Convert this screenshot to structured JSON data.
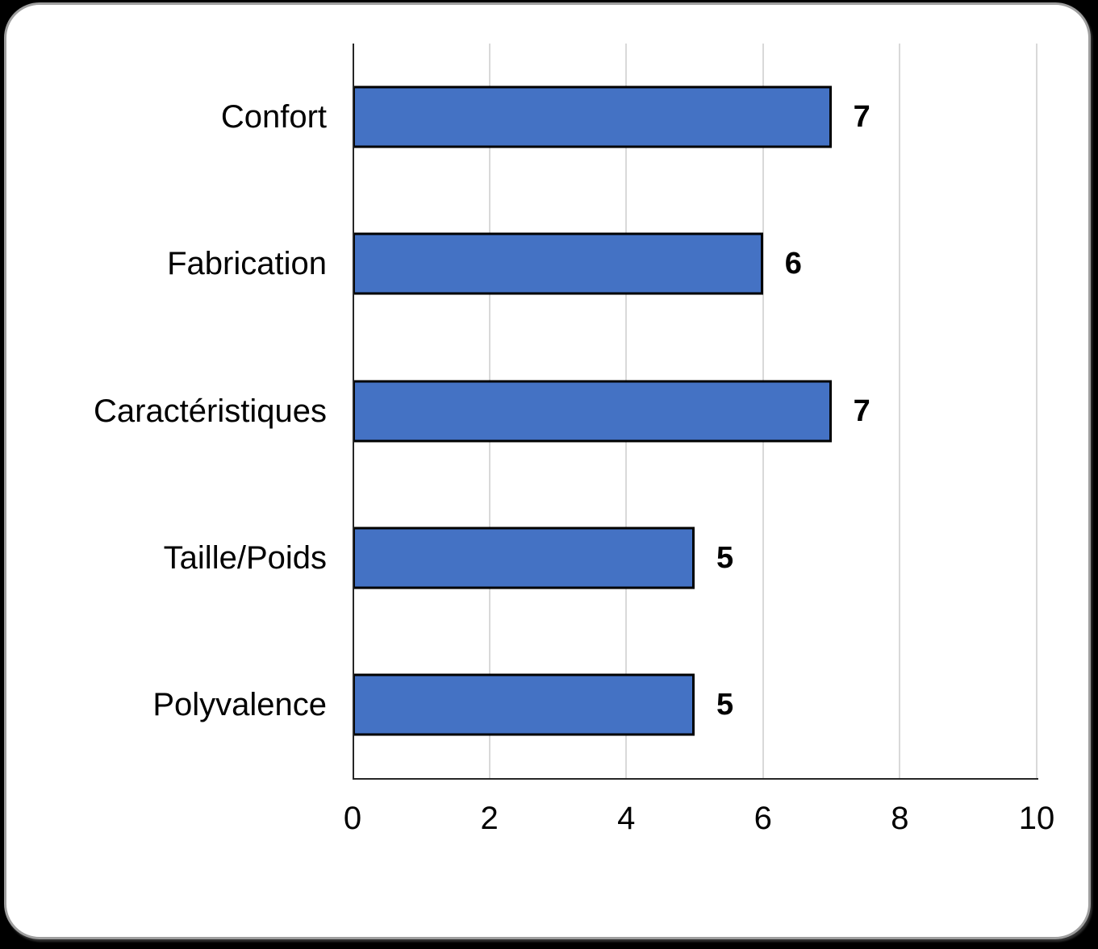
{
  "card": {
    "outer_background": "#000000",
    "background": "#ffffff",
    "border_color": "#9e9e9e"
  },
  "chart_data": {
    "type": "bar",
    "orientation": "horizontal",
    "title": "",
    "xlabel": "",
    "ylabel": "",
    "categories": [
      "Confort",
      "Fabrication",
      "Caractéristiques",
      "Taille/Poids",
      "Polyvalence"
    ],
    "values": [
      7,
      6,
      7,
      5,
      5
    ],
    "data_labels": [
      "7",
      "6",
      "7",
      "5",
      "5"
    ],
    "xlim": [
      0,
      10
    ],
    "xticks": [
      0,
      2,
      4,
      6,
      8,
      10
    ],
    "xtick_labels": [
      "0",
      "2",
      "4",
      "6",
      "8",
      "10"
    ],
    "grid": "vertical-only",
    "legend": "none",
    "bar_color": "#4472C4",
    "bar_border_color": "#000000",
    "gridline_color": "#D9D9D9",
    "axis_line_color": "#262626",
    "text_color": "#000000"
  }
}
